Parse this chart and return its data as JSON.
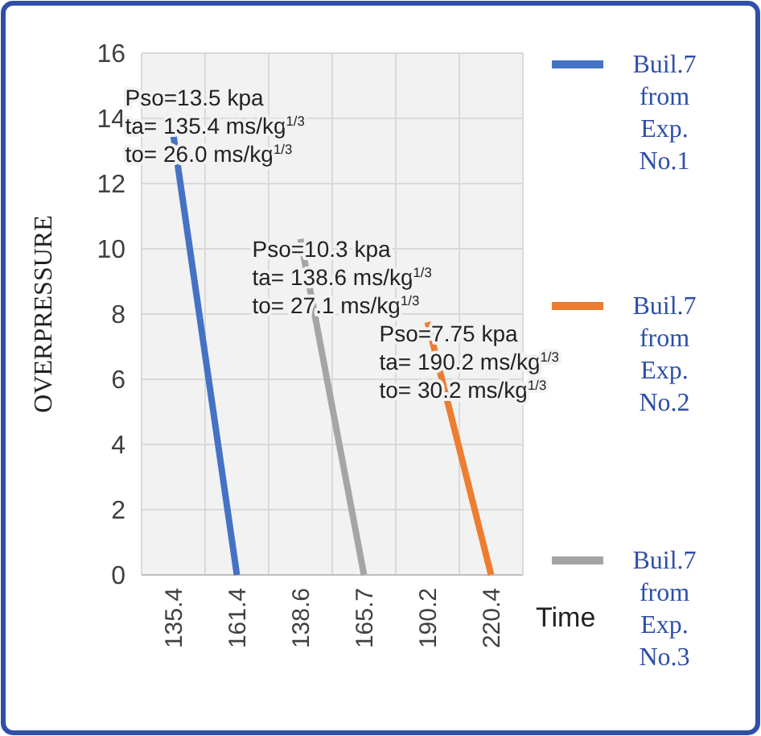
{
  "chart_data": {
    "type": "line",
    "ylabel": "OVERPRESSURE",
    "xlabel": "Time",
    "categories": [
      "135.4",
      "161.4",
      "138.6",
      "165.7",
      "190.2",
      "220.4"
    ],
    "series": [
      {
        "name": "Buil.7 from Exp. No.1",
        "color": "#4472c4",
        "values": [
          13.5,
          0,
          null,
          null,
          null,
          null
        ]
      },
      {
        "name": "Buil.7 from Exp. No.2",
        "color": "#ed7d31",
        "values": [
          null,
          null,
          null,
          null,
          7.75,
          0
        ]
      },
      {
        "name": "Buil.7 from Exp. No.3",
        "color": "#a5a5a5",
        "values": [
          null,
          null,
          10.3,
          0,
          null,
          null
        ]
      }
    ],
    "ylim": [
      0,
      16
    ],
    "yticks": [
      0,
      2,
      4,
      6,
      8,
      10,
      12,
      14,
      16
    ],
    "grid": true,
    "legend": "right",
    "marker": "none",
    "line_style": "solid",
    "annotations": [
      {
        "text": "Pso=13.5 kpa",
        "x": "135.4",
        "y": 13.5
      },
      {
        "text": "ta= 135.4 ms/kg$^{1/3}$",
        "x": "135.4",
        "y": 13.5
      },
      {
        "text": "to= 26.0 ms/kg$^{1/3}$",
        "x": "135.4",
        "y": 13.5
      },
      {
        "text": "Pso=10.3 kpa",
        "x": "138.6",
        "y": 10.3
      },
      {
        "text": "ta= 138.6 ms/kg$^{1/3}$",
        "x": "138.6",
        "y": 10.3
      },
      {
        "text": "to= 27.1 ms/kg$^{1/3}$",
        "x": "138.6",
        "y": 10.3
      },
      {
        "text": "Pso=7.75 kpa",
        "x": "190.2",
        "y": 7.75
      },
      {
        "text": "ta= 190.2 ms/kg$^{1/3}$",
        "x": "190.2",
        "y": 7.75
      },
      {
        "text": "to= 30.2 ms/kg$^{1/3}$",
        "x": "190.2",
        "y": 7.75
      }
    ]
  }
}
